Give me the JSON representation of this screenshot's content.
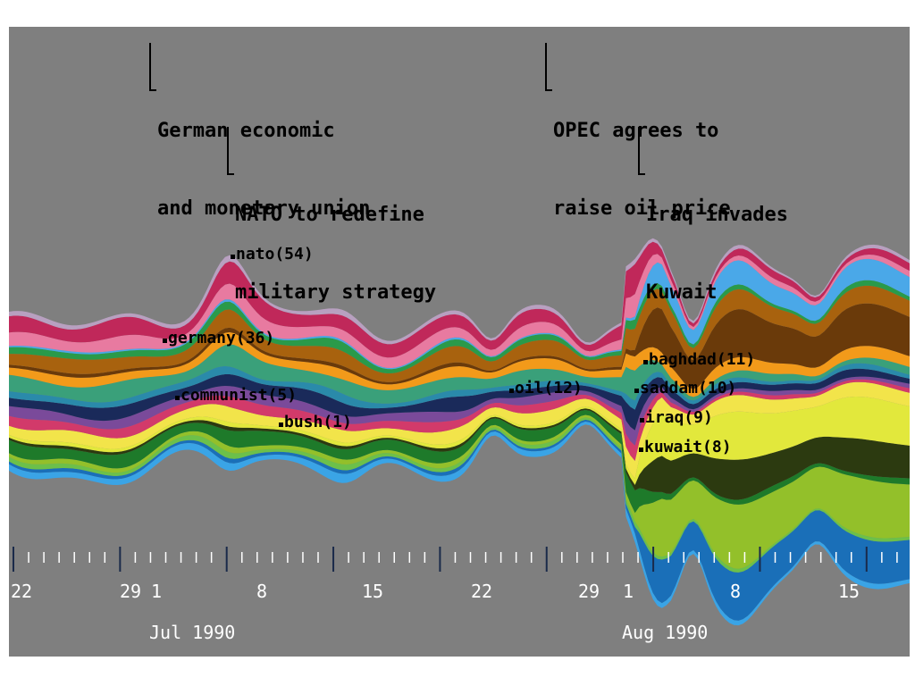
{
  "chart_data": {
    "type": "area",
    "events": [
      {
        "lines": [
          "German economic",
          "and monetary union"
        ]
      },
      {
        "lines": [
          "NATO to redefine",
          "military strategy"
        ]
      },
      {
        "lines": [
          "OPEC agrees to",
          "raise oil price"
        ]
      },
      {
        "lines": [
          "Iraq invades",
          "Kuwait"
        ]
      }
    ],
    "term_labels": [
      "nato(54)",
      "germany(36)",
      "communist(5)",
      "bush(1)",
      "oil(12)",
      "baghdad(11)",
      "saddam(10)",
      "iraq(9)",
      "kuwait(8)"
    ],
    "x_tick_labels": [
      "22",
      "29",
      "1",
      "8",
      "15",
      "22",
      "29",
      "1",
      "8",
      "15"
    ],
    "month_labels": [
      "Jul 1990",
      "Aug 1990"
    ],
    "x_range": [
      "1990-06-22",
      "1990-08-20"
    ],
    "layers": [
      {
        "color": "#3aa4e6",
        "term": "",
        "start": 0.03,
        "profile": "base"
      },
      {
        "color": "#1a6fb8",
        "term": "kuwait(8)",
        "start": 0.06,
        "profile": "gulf"
      },
      {
        "color": "#6cc04a",
        "term": "",
        "start": 0.02,
        "profile": "base"
      },
      {
        "color": "#93c02a",
        "term": "iraq(9)",
        "start": 0.08,
        "profile": "gulf"
      },
      {
        "color": "#1e7a2a",
        "term": "communist(5)",
        "start": 0.04,
        "profile": "early"
      },
      {
        "color": "#2c3a10",
        "term": "saddam(10)",
        "start": 0.05,
        "profile": "gulf"
      },
      {
        "color": "#e2e83c",
        "term": "baghdad(11)",
        "start": 0.06,
        "profile": "gulf"
      },
      {
        "color": "#f2e44a",
        "term": "oil(12)",
        "start": 0.05,
        "profile": "mid"
      },
      {
        "color": "#d23a6a",
        "term": "",
        "start": 0.03,
        "profile": "early"
      },
      {
        "color": "#7a4a9a",
        "term": "",
        "start": 0.03,
        "profile": "early"
      },
      {
        "color": "#1a2a5a",
        "term": "bush(1)",
        "start": 0.05,
        "profile": "base"
      },
      {
        "color": "#2a8aaa",
        "term": "",
        "start": 0.03,
        "profile": "base"
      },
      {
        "color": "#3aa07a",
        "term": "germany(36)",
        "start": 0.05,
        "profile": "early"
      },
      {
        "color": "#f29a1a",
        "term": "",
        "start": 0.04,
        "profile": "mid"
      },
      {
        "color": "#6a3a0a",
        "term": "",
        "start": 0.06,
        "profile": "gulf"
      },
      {
        "color": "#a8620e",
        "term": "",
        "start": 0.06,
        "profile": "mid"
      },
      {
        "color": "#2a9a4a",
        "term": "",
        "start": 0.03,
        "profile": "base"
      },
      {
        "color": "#4aa8e8",
        "term": "",
        "start": 0.03,
        "profile": "gulf"
      },
      {
        "color": "#e87aa0",
        "term": "",
        "start": 0.04,
        "profile": "early"
      },
      {
        "color": "#c0285a",
        "term": "nato(54)",
        "start": 0.05,
        "profile": "early"
      },
      {
        "color": "#b8a0c0",
        "term": "",
        "start": 0.02,
        "profile": "base"
      }
    ]
  }
}
